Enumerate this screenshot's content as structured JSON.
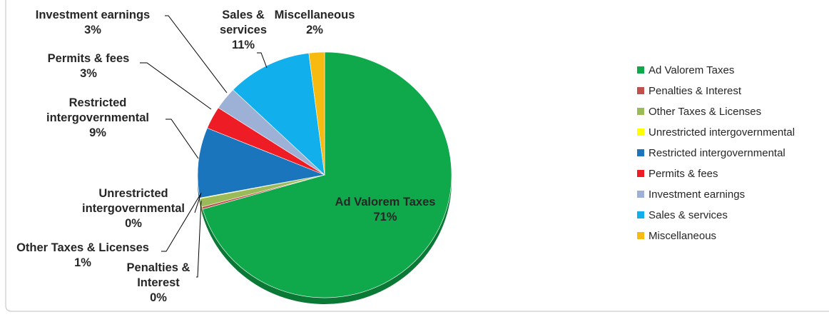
{
  "chart_data": {
    "type": "pie",
    "style": "3d-pie",
    "legend_position": "right",
    "slices": [
      {
        "name": "Ad Valorem Taxes",
        "pct_label": "71%",
        "value": 71.0,
        "color": "#0FA84B"
      },
      {
        "name": "Penalties & Interest",
        "pct_label": "0%",
        "value": 0.3,
        "color": "#C0504D"
      },
      {
        "name": "Other Taxes & Licenses",
        "pct_label": "1%",
        "value": 1.1,
        "color": "#9BBB59"
      },
      {
        "name": "Unrestricted intergovernmental",
        "pct_label": "0%",
        "value": 0.1,
        "color": "#FFFF00"
      },
      {
        "name": "Restricted intergovernmental",
        "pct_label": "9%",
        "value": 9.3,
        "color": "#1B75BC"
      },
      {
        "name": "Permits & fees",
        "pct_label": "3%",
        "value": 3.0,
        "color": "#EE1C25"
      },
      {
        "name": "Investment earnings",
        "pct_label": "3%",
        "value": 3.0,
        "color": "#9DB0D5"
      },
      {
        "name": "Sales & services",
        "pct_label": "11%",
        "value": 10.9,
        "color": "#11B0EC"
      },
      {
        "name": "Miscellaneous",
        "pct_label": "2%",
        "value": 2.0,
        "color": "#F7BA10"
      }
    ],
    "data_labels": [
      {
        "lines": [
          "Ad Valorem Taxes",
          "71%"
        ]
      },
      {
        "lines": [
          "Penalties &",
          "Interest",
          "0%"
        ]
      },
      {
        "lines": [
          "Other Taxes & Licenses",
          "1%"
        ]
      },
      {
        "lines": [
          "Unrestricted",
          "intergovernmental",
          "0%"
        ]
      },
      {
        "lines": [
          "Restricted",
          "intergovernmental",
          "9%"
        ]
      },
      {
        "lines": [
          "Permits & fees",
          "3%"
        ]
      },
      {
        "lines": [
          "Investment earnings",
          "3%"
        ]
      },
      {
        "lines": [
          "Sales &",
          "services",
          "11%"
        ]
      },
      {
        "lines": [
          "Miscellaneous",
          "2%"
        ]
      }
    ]
  }
}
